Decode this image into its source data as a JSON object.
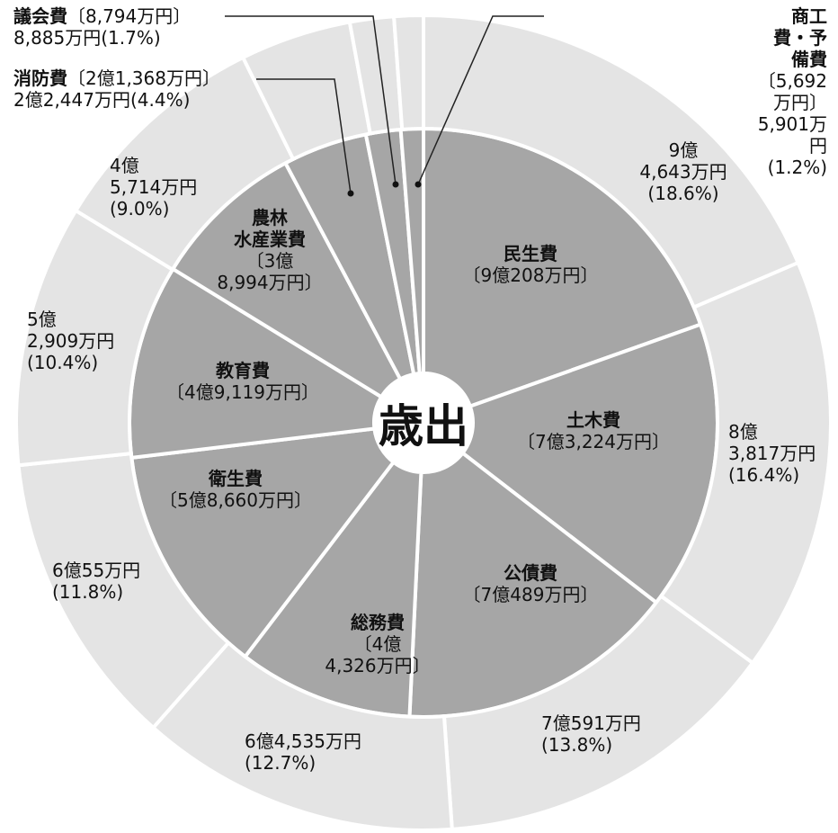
{
  "chart_data": {
    "type": "pie",
    "title": "歳出",
    "categories": [
      "民生費",
      "土木費",
      "公債費",
      "総務費",
      "衛生費",
      "教育費",
      "農林\n水産業費",
      "消防費",
      "議会費",
      "商工費・予備費"
    ],
    "series": [
      {
        "color": "#a6a6a6",
        "values": [
          90208,
          73224,
          70489,
          44326,
          58660,
          49119,
          38994,
          21368,
          8794,
          5692
        ],
        "value_labels": [
          "〔9億208万円〕",
          "〔7億3,224万円〕",
          "〔7億489万円〕",
          "〔4億\n4,326万円〕",
          "〔5億8,660万円〕",
          "〔4億9,119万円〕",
          "〔3億\n8,994万円〕",
          "〔2億1,368万円〕",
          "〔8,794万円〕",
          "〔5,692万円〕"
        ]
      },
      {
        "color": "#e4e4e4",
        "values": [
          94643,
          83817,
          70591,
          64535,
          60055,
          52909,
          45714,
          22447,
          8885,
          5901
        ],
        "value_labels": [
          "9億\n4,643万円\n(18.6%)",
          "8億\n3,817万円\n(16.4%)",
          "7億591万円\n(13.8%)",
          "6億4,535万円\n(12.7%)",
          "6億55万円\n(11.8%)",
          "5億\n2,909万円\n(10.4%)",
          "4億\n5,714万円\n(9.0%)",
          "2億2,447万円(4.4%)",
          "8,885万円(1.7%)",
          "5,901万円(1.2%)"
        ]
      }
    ]
  }
}
